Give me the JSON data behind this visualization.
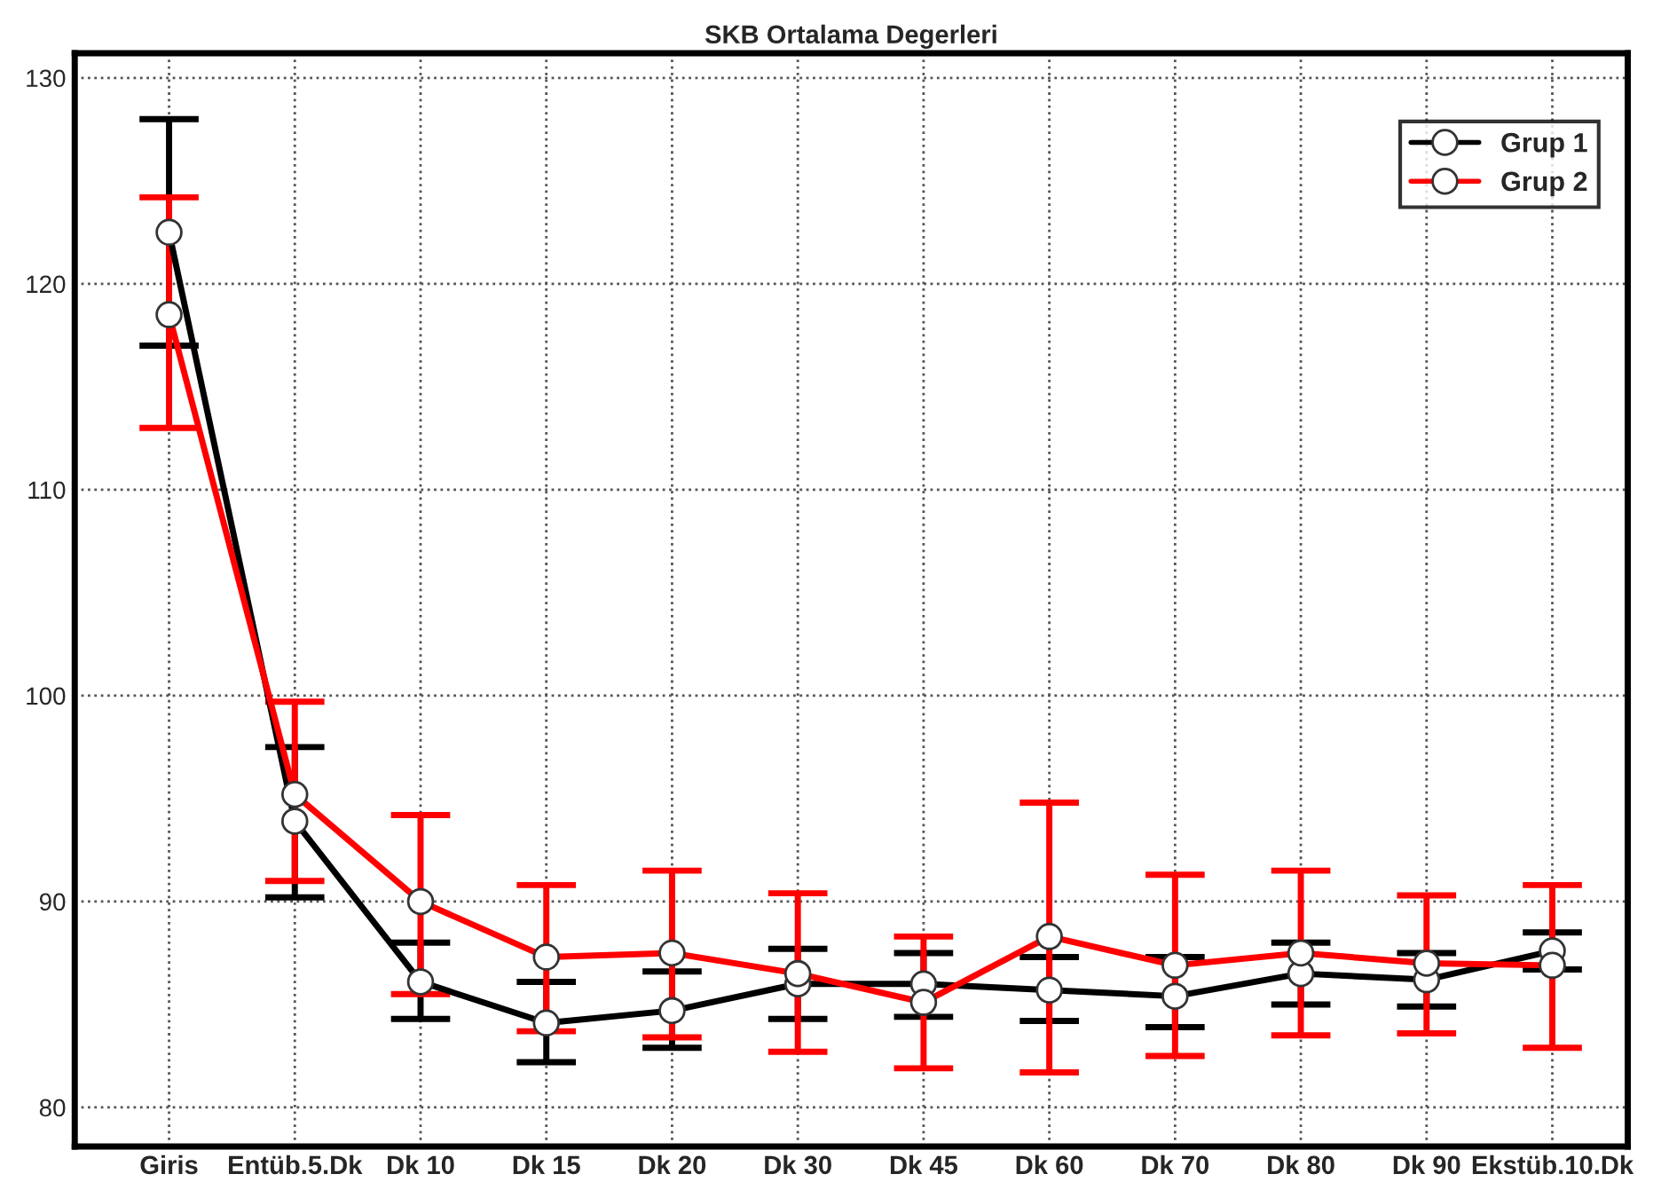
{
  "chart_data": {
    "type": "line",
    "title": "SKB Ortalama Degerleri",
    "categories": [
      "Giris",
      "Entüb.5.Dk",
      "Dk 10",
      "Dk 15",
      "Dk 20",
      "Dk 30",
      "Dk 45",
      "Dk 60",
      "Dk 70",
      "Dk 80",
      "Dk 90",
      "Ekstüb.10.Dk"
    ],
    "series": [
      {
        "name": "Grup 1",
        "color": "#000000",
        "values": [
          122.5,
          93.9,
          86.1,
          84.1,
          84.7,
          86.0,
          86.0,
          85.7,
          85.4,
          86.5,
          86.2,
          87.6
        ],
        "errors": [
          [
            117.0,
            128.0
          ],
          [
            90.2,
            97.5
          ],
          [
            84.3,
            88.0
          ],
          [
            82.2,
            86.1
          ],
          [
            82.9,
            86.6
          ],
          [
            84.3,
            87.7
          ],
          [
            84.4,
            87.5
          ],
          [
            84.2,
            87.3
          ],
          [
            83.9,
            87.3
          ],
          [
            85.0,
            88.0
          ],
          [
            84.9,
            87.5
          ],
          [
            86.7,
            88.5
          ]
        ]
      },
      {
        "name": "Grup 2",
        "color": "#ff0000",
        "values": [
          118.5,
          95.2,
          90.0,
          87.3,
          87.5,
          86.5,
          85.1,
          88.3,
          86.9,
          87.5,
          87.0,
          86.9
        ],
        "errors": [
          [
            113.0,
            124.2
          ],
          [
            91.0,
            99.7
          ],
          [
            85.5,
            94.2
          ],
          [
            83.7,
            90.8
          ],
          [
            83.4,
            91.5
          ],
          [
            82.7,
            90.4
          ],
          [
            81.9,
            88.3
          ],
          [
            81.7,
            94.8
          ],
          [
            82.5,
            91.3
          ],
          [
            83.5,
            91.5
          ],
          [
            83.6,
            90.3
          ],
          [
            82.9,
            90.8
          ]
        ]
      }
    ],
    "ylim": [
      78.1,
      131.2
    ],
    "yticks": [
      80,
      90,
      100,
      110,
      120,
      130
    ],
    "grid": true,
    "legend": "top right",
    "marker": "circle",
    "line_style": "solid"
  }
}
